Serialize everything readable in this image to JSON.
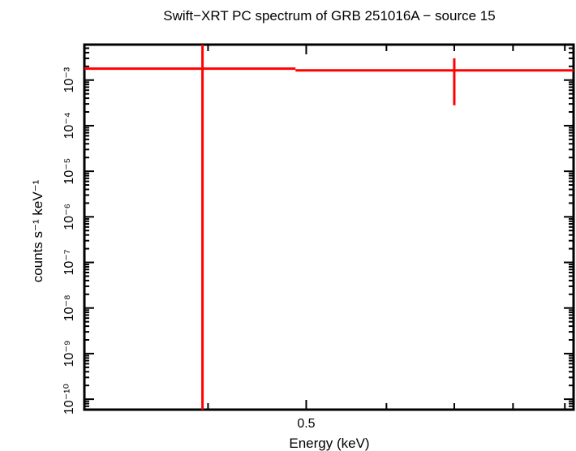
{
  "chart_data": {
    "type": "line",
    "title": "Swift−XRT PC spectrum of GRB 251016A − source 15",
    "xlabel": "Energy (keV)",
    "ylabel": "counts s⁻¹ keV⁻¹",
    "x_scale": "log",
    "y_scale": "log",
    "xlim": [
      0.302,
      0.918
    ],
    "ylim": [
      5.9e-11,
      0.006
    ],
    "x_ticks": {
      "major_labeled": [
        0.5
      ],
      "minor": [
        0.4,
        0.6,
        0.7,
        0.8,
        0.9
      ]
    },
    "y_ticks": {
      "labels": [
        "10⁻³",
        "10⁻⁴",
        "10⁻⁵",
        "10⁻⁶",
        "10⁻⁷",
        "10⁻⁸",
        "10⁻⁹",
        "10⁻¹⁰"
      ],
      "values": [
        0.001,
        0.0001,
        1e-05,
        1e-06,
        1e-07,
        1e-08,
        1e-09,
        1e-10
      ]
    },
    "grid": false,
    "legend": null,
    "series": [
      {
        "name": "data",
        "color": "#ff0000",
        "points": [
          {
            "x": 0.395,
            "x_low": 0.302,
            "x_high": 0.488,
            "y": 0.00178,
            "y_low": 1e-11,
            "y_high": 0.006
          },
          {
            "x": 0.7,
            "x_low": 0.488,
            "x_high": 0.918,
            "y": 0.00163,
            "y_low": 0.00028,
            "y_high": 0.003
          }
        ]
      }
    ]
  },
  "colors": {
    "frame": "#000000",
    "data": "#ff0000",
    "background": "#ffffff"
  }
}
